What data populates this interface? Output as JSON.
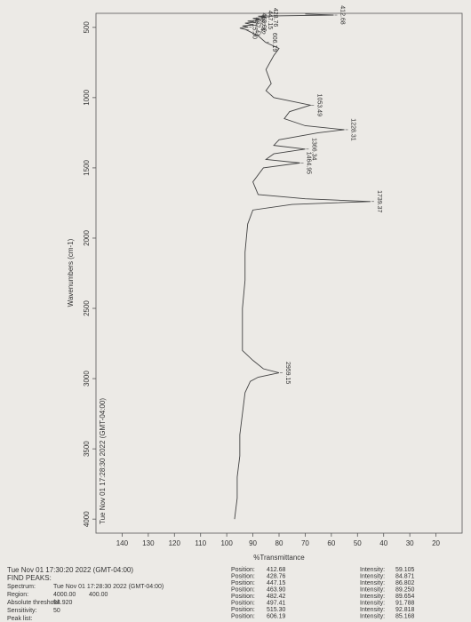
{
  "chart_data": {
    "type": "line",
    "header": "Tue Nov 01 17:28:30 2022 (GMT-04:00)",
    "x_label": "Wavenumbers (cm-1)",
    "y_label": "%Transmittance",
    "xlim": [
      4100,
      400
    ],
    "xticks": [
      4000,
      3500,
      3000,
      2500,
      2000,
      1500,
      1000,
      500
    ],
    "ylim": [
      10,
      150
    ],
    "yticks": [
      20,
      30,
      40,
      50,
      60,
      70,
      80,
      90,
      100,
      110,
      120,
      130,
      140
    ],
    "series": [
      {
        "name": "Spectrum",
        "color": "#444444",
        "x": [
          4000,
          3850,
          3700,
          3550,
          3400,
          3250,
          3100,
          3020,
          2990,
          2959.15,
          2930,
          2870,
          2800,
          2650,
          2500,
          2300,
          2100,
          1900,
          1800,
          1760,
          1739.37,
          1720,
          1690,
          1600,
          1500,
          1464.95,
          1440,
          1400,
          1366.34,
          1340,
          1300,
          1250,
          1228.31,
          1200,
          1150,
          1100,
          1053.49,
          1000,
          950,
          900,
          800,
          700,
          650,
          606.19,
          560,
          515.3,
          505,
          497.41,
          490,
          482.42,
          470,
          463.9,
          455,
          447.15,
          435,
          428.76,
          420,
          412.68,
          405
        ],
        "values": [
          97,
          96,
          96,
          95,
          95,
          94,
          93,
          91,
          88,
          80,
          86,
          90,
          94,
          94,
          94,
          93,
          93,
          92,
          90,
          75,
          45,
          70,
          88,
          90,
          86,
          72,
          85,
          82,
          70,
          82,
          80,
          65,
          55,
          70,
          78,
          76,
          68,
          82,
          85,
          83,
          85,
          82,
          80,
          85.168,
          88,
          92.818,
          95,
          91.788,
          94,
          89.654,
          93,
          89.25,
          92,
          86.802,
          90,
          84.871,
          88,
          59.105,
          70
        ]
      }
    ],
    "peak_labels": [
      {
        "value": 2959.15,
        "label": "2959.15"
      },
      {
        "value": 1739.37,
        "label": "1739.37"
      },
      {
        "value": 1464.95,
        "label": "1464.95"
      },
      {
        "value": 1366.34,
        "label": "1366.34"
      },
      {
        "value": 1228.31,
        "label": "1228.31"
      },
      {
        "value": 1053.49,
        "label": "1053.49"
      },
      {
        "value": 606.19,
        "label": "606.19"
      },
      {
        "value": 515.3,
        "label": "515.30"
      },
      {
        "value": 497.41,
        "label": "497.41"
      },
      {
        "value": 482.42,
        "label": "482.42"
      },
      {
        "value": 463.9,
        "label": "463.90"
      },
      {
        "value": 447.15,
        "label": "447.15"
      },
      {
        "value": 428.76,
        "label": "428.76"
      },
      {
        "value": 412.68,
        "label": "412.68"
      }
    ]
  },
  "report": {
    "timestamp": "Tue Nov 01 17:30:20 2022 (GMT-04:00)",
    "title": "FIND PEAKS:",
    "fields": [
      {
        "label": "Spectrum:",
        "values": [
          "Tue Nov 01 17:28:30 2022 (GMT-04:00)"
        ]
      },
      {
        "label": "Region:",
        "values": [
          "4000.00",
          "400.00"
        ]
      },
      {
        "label": "Absolute threshold:",
        "values": [
          "94.920"
        ]
      },
      {
        "label": "Sensitivity:",
        "values": [
          "50"
        ]
      }
    ],
    "peak_list": {
      "label": "Peak list:",
      "rows": [
        [
          "Position:",
          "412.68",
          "Intensity:",
          "59.105"
        ],
        [
          "Position:",
          "428.76",
          "Intensity:",
          "84.871"
        ],
        [
          "Position:",
          "447.15",
          "Intensity:",
          "86.802"
        ],
        [
          "Position:",
          "463.90",
          "Intensity:",
          "89.250"
        ],
        [
          "Position:",
          "482.42",
          "Intensity:",
          "89.654"
        ],
        [
          "Position:",
          "497.41",
          "Intensity:",
          "91.788"
        ],
        [
          "Position:",
          "515.30",
          "Intensity:",
          "92.818"
        ],
        [
          "Position:",
          "606.19",
          "Intensity:",
          "85.168"
        ]
      ]
    }
  }
}
